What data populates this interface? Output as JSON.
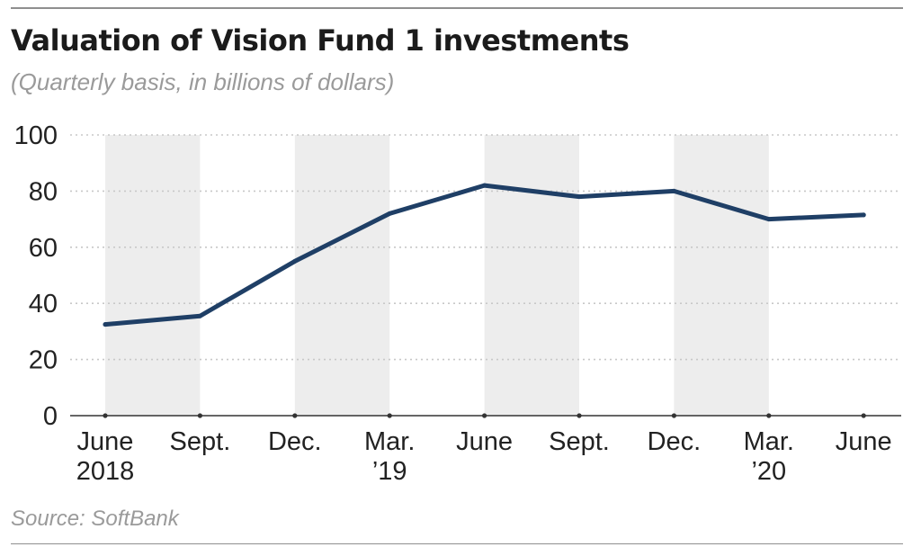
{
  "title": "Valuation of Vision Fund 1 investments",
  "subtitle": "(Quarterly basis, in billions of dollars)",
  "source": "Source: SoftBank",
  "colors": {
    "line": "#1f3f66",
    "band": "#ededed",
    "grid": "#c8c8c8",
    "axis": "#333333"
  },
  "chart_data": {
    "type": "line",
    "categories": [
      [
        "June",
        "2018"
      ],
      [
        "Sept."
      ],
      [
        "Dec."
      ],
      [
        "Mar.",
        "’19"
      ],
      [
        "June"
      ],
      [
        "Sept."
      ],
      [
        "Dec."
      ],
      [
        "Mar.",
        "’20"
      ],
      [
        "June"
      ]
    ],
    "series": [
      {
        "values": [
          32.5,
          35.5,
          55,
          72,
          82,
          78,
          80,
          70,
          71.5
        ]
      }
    ],
    "ylim": [
      0,
      100
    ],
    "yticks": [
      0,
      20,
      40,
      60,
      80,
      100
    ],
    "grid": true,
    "alternating_bands": true
  }
}
